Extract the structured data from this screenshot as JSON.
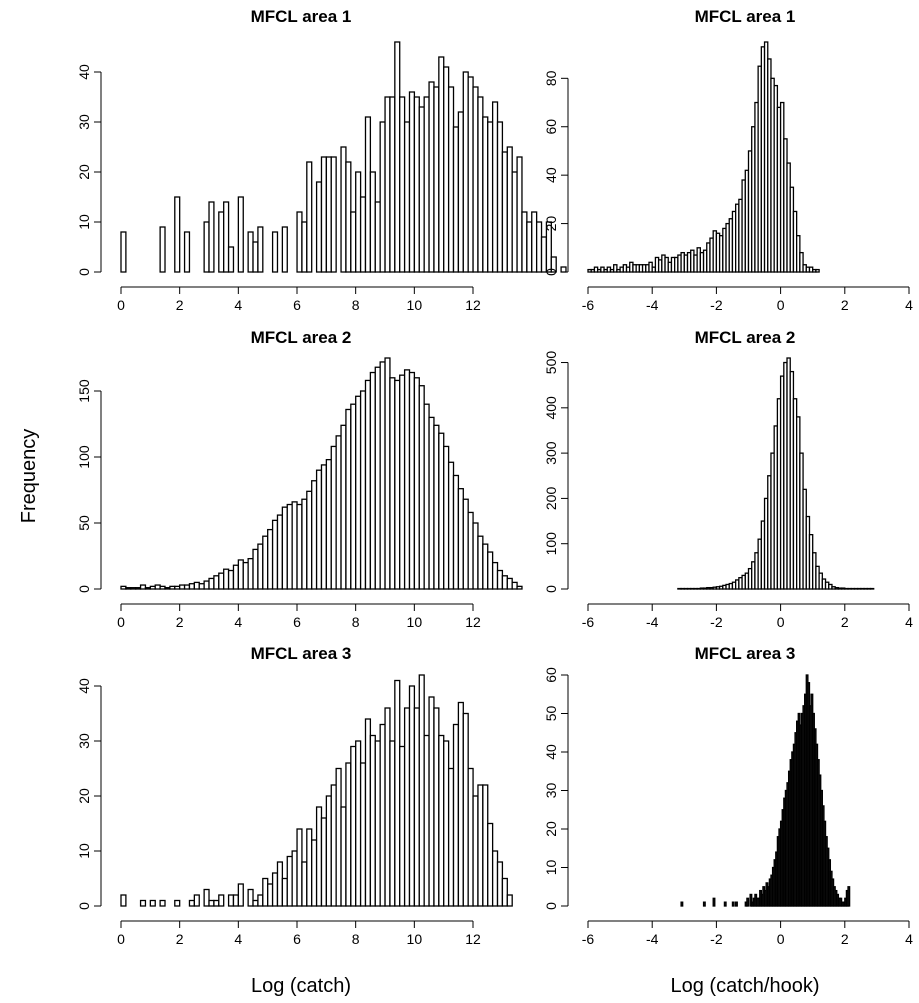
{
  "figure": {
    "ylabel": "Frequency",
    "xlabels": [
      "Log (catch)",
      "Log (catch/hook)"
    ]
  },
  "chart_data": [
    {
      "type": "bar",
      "title": "MFCL area 1",
      "xlabel": "",
      "ylabel": "Frequency",
      "xlim": [
        0,
        12
      ],
      "ylim": [
        0,
        46
      ],
      "xticks": [
        0,
        2,
        4,
        6,
        8,
        10,
        12
      ],
      "yticks": [
        0,
        10,
        20,
        30,
        40
      ],
      "bin_start": 0.0,
      "bin_width": 0.1667,
      "values": [
        8,
        0,
        0,
        0,
        0,
        0,
        0,
        0,
        9,
        0,
        0,
        15,
        0,
        8,
        0,
        0,
        0,
        10,
        14,
        0,
        12,
        14,
        5,
        0,
        15,
        0,
        8,
        6,
        9,
        0,
        0,
        8,
        0,
        9,
        0,
        0,
        12,
        10,
        22,
        0,
        18,
        23,
        23,
        23,
        0,
        25,
        22,
        12,
        20,
        15,
        31,
        20,
        14,
        30,
        35,
        35,
        46,
        35,
        30,
        36,
        35,
        33,
        35,
        38,
        37,
        43,
        41,
        37,
        29,
        32,
        40,
        39,
        37,
        35,
        31,
        30,
        34,
        30,
        24,
        25,
        20,
        23,
        12,
        10,
        12,
        10,
        7,
        10,
        3,
        0,
        1,
        0
      ],
      "fill": "#ffffff"
    },
    {
      "type": "bar",
      "title": "MFCL area 1",
      "xlabel": "",
      "ylabel": "Frequency",
      "xlim": [
        -6,
        4
      ],
      "ylim": [
        0,
        95
      ],
      "xticks": [
        -6,
        -4,
        -2,
        0,
        2,
        4
      ],
      "yticks": [
        0,
        20,
        40,
        60,
        80
      ],
      "bin_start": -6.0,
      "bin_width": 0.1,
      "values": [
        1,
        1,
        2,
        1,
        2,
        1,
        2,
        1,
        3,
        1,
        2,
        3,
        2,
        4,
        3,
        3,
        3,
        3,
        3,
        4,
        2,
        6,
        5,
        7,
        6,
        4,
        6,
        6,
        7,
        8,
        7,
        8,
        9,
        7,
        10,
        8,
        9,
        12,
        14,
        17,
        16,
        15,
        18,
        20,
        22,
        25,
        28,
        30,
        38,
        42,
        50,
        60,
        70,
        85,
        93,
        95,
        88,
        80,
        77,
        68,
        70,
        55,
        45,
        35,
        25,
        15,
        8,
        3,
        2,
        2,
        1,
        1
      ],
      "fill": "#ffffff"
    },
    {
      "type": "bar",
      "title": "MFCL area 2",
      "xlabel": "",
      "ylabel": "Frequency",
      "xlim": [
        0,
        12
      ],
      "ylim": [
        0,
        175
      ],
      "xticks": [
        0,
        2,
        4,
        6,
        8,
        10,
        12
      ],
      "yticks": [
        0,
        50,
        100,
        150
      ],
      "bin_start": 0.0,
      "bin_width": 0.1667,
      "values": [
        2,
        1,
        1,
        1,
        3,
        1,
        2,
        3,
        2,
        1,
        2,
        2,
        3,
        3,
        4,
        5,
        4,
        6,
        8,
        10,
        12,
        15,
        14,
        18,
        22,
        20,
        23,
        30,
        34,
        40,
        45,
        52,
        56,
        62,
        64,
        66,
        64,
        68,
        74,
        82,
        90,
        94,
        98,
        108,
        116,
        124,
        136,
        140,
        146,
        150,
        158,
        164,
        168,
        172,
        175,
        160,
        158,
        162,
        166,
        164,
        160,
        154,
        140,
        130,
        124,
        118,
        108,
        96,
        86,
        76,
        68,
        58,
        50,
        40,
        34,
        28,
        20,
        14,
        10,
        8,
        5,
        2
      ],
      "fill": "#ffffff"
    },
    {
      "type": "bar",
      "title": "MFCL area 2",
      "xlabel": "",
      "ylabel": "Frequency",
      "xlim": [
        -6,
        4
      ],
      "ylim": [
        0,
        510
      ],
      "xticks": [
        -6,
        -4,
        -2,
        0,
        2,
        4
      ],
      "yticks": [
        0,
        100,
        200,
        300,
        400,
        500
      ],
      "bin_start": -6.0,
      "bin_width": 0.1,
      "values": [
        0,
        0,
        0,
        0,
        0,
        0,
        0,
        0,
        0,
        0,
        0,
        0,
        0,
        0,
        0,
        0,
        0,
        0,
        0,
        0,
        0,
        0,
        0,
        0,
        0,
        0,
        0,
        0,
        1,
        1,
        1,
        1,
        1,
        1,
        1,
        2,
        2,
        3,
        3,
        4,
        5,
        6,
        8,
        10,
        12,
        15,
        20,
        25,
        30,
        35,
        45,
        60,
        80,
        110,
        150,
        200,
        250,
        300,
        360,
        420,
        470,
        500,
        510,
        480,
        420,
        380,
        300,
        220,
        160,
        120,
        80,
        50,
        35,
        22,
        15,
        10,
        5,
        3,
        2,
        2,
        1,
        1,
        1,
        1,
        1,
        1,
        1,
        1,
        1
      ],
      "fill": "#ffffff"
    },
    {
      "type": "bar",
      "title": "MFCL area 3",
      "xlabel": "Log (catch)",
      "ylabel": "Frequency",
      "xlim": [
        0,
        12
      ],
      "ylim": [
        0,
        42
      ],
      "xticks": [
        0,
        2,
        4,
        6,
        8,
        10,
        12
      ],
      "yticks": [
        0,
        10,
        20,
        30,
        40
      ],
      "bin_start": 0.0,
      "bin_width": 0.1667,
      "values": [
        2,
        0,
        0,
        0,
        1,
        0,
        1,
        0,
        1,
        0,
        0,
        1,
        0,
        0,
        1,
        2,
        0,
        3,
        1,
        1,
        2,
        0,
        2,
        2,
        4,
        0,
        3,
        1,
        2,
        5,
        4,
        6,
        8,
        5,
        9,
        10,
        14,
        8,
        14,
        12,
        18,
        16,
        20,
        22,
        25,
        18,
        26,
        29,
        30,
        26,
        34,
        31,
        30,
        33,
        36,
        30,
        41,
        29,
        36,
        40,
        36,
        42,
        31,
        38,
        36,
        31,
        30,
        25,
        33,
        37,
        35,
        25,
        20,
        22,
        22,
        15,
        10,
        8,
        5,
        2
      ],
      "fill": "#ffffff"
    },
    {
      "type": "bar",
      "title": "MFCL area 3",
      "xlabel": "Log (catch/hook)",
      "ylabel": "Frequency",
      "xlim": [
        -6,
        4
      ],
      "ylim": [
        0,
        60
      ],
      "xticks": [
        -6,
        -4,
        -2,
        0,
        2,
        4
      ],
      "yticks": [
        0,
        10,
        20,
        30,
        40,
        50,
        60
      ],
      "bin_start": -3.1,
      "bin_width": 0.05,
      "values": [
        1,
        0,
        0,
        0,
        0,
        0,
        0,
        0,
        0,
        0,
        0,
        0,
        0,
        0,
        1,
        0,
        0,
        0,
        0,
        0,
        2,
        0,
        0,
        0,
        0,
        0,
        0,
        1,
        0,
        0,
        0,
        0,
        1,
        0,
        1,
        0,
        0,
        0,
        0,
        0,
        1,
        2,
        0,
        3,
        1,
        2,
        3,
        2,
        2,
        4,
        3,
        5,
        4,
        6,
        5,
        7,
        8,
        10,
        12,
        14,
        18,
        20,
        22,
        25,
        28,
        30,
        32,
        35,
        38,
        40,
        42,
        45,
        48,
        50,
        47,
        50,
        52,
        55,
        60,
        58,
        52,
        55,
        50,
        46,
        42,
        38,
        34,
        30,
        26,
        22,
        18,
        15,
        12,
        9,
        7,
        5,
        4,
        3,
        2,
        2,
        1,
        1,
        2,
        4,
        5
      ],
      "fill": "#222222"
    }
  ]
}
